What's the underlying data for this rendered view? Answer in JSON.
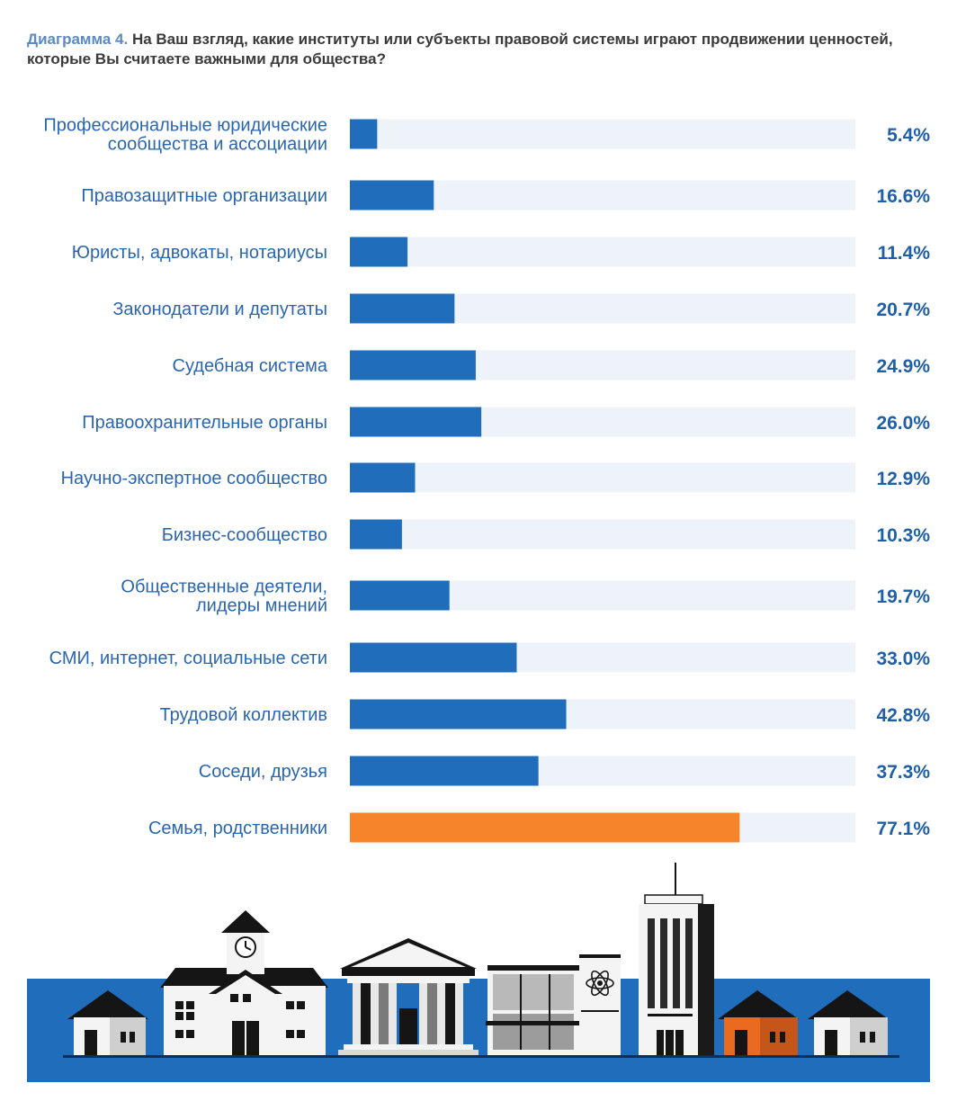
{
  "title": {
    "lead": "Диаграмма 4.",
    "text": "На Ваш взгляд, какие институты или субъекты правовой системы играют продвижении ценностей, которые Вы считаете важными для общества?"
  },
  "colors": {
    "bar": "#1f6dbb",
    "highlight": "#f5842a",
    "track": "#edf3f9",
    "label": "#2a66ad",
    "value": "#1f5fa8",
    "ground": "#1f6dbb"
  },
  "chart_data": {
    "type": "bar",
    "orientation": "horizontal",
    "xlim": [
      0,
      100
    ],
    "unit": "%",
    "grid": false,
    "legend": "none",
    "categories": [
      [
        "Профессиональные юридические",
        "сообщества и ассоциации"
      ],
      [
        "Правозащитные организации"
      ],
      [
        "Юристы, адвокаты, нотариусы"
      ],
      [
        "Законодатели и депутаты"
      ],
      [
        "Судебная система"
      ],
      [
        "Правоохранительные органы"
      ],
      [
        "Научно-экспертное сообщество"
      ],
      [
        "Бизнес-сообщество"
      ],
      [
        "Общественные деятели,",
        "лидеры мнений"
      ],
      [
        "СМИ, интернет, социальные сети"
      ],
      [
        "Трудовой коллектив"
      ],
      [
        "Соседи, друзья"
      ],
      [
        "Семья, родственники"
      ]
    ],
    "values": [
      5.4,
      16.6,
      11.4,
      20.7,
      24.9,
      26.0,
      12.9,
      10.3,
      19.7,
      33.0,
      42.8,
      37.3,
      77.1
    ],
    "value_labels": [
      "5.4%",
      "16.6%",
      "11.4%",
      "20.7%",
      "24.9%",
      "26.0%",
      "12.9%",
      "10.3%",
      "19.7%",
      "33.0%",
      "42.8%",
      "37.3%",
      "77.1%"
    ],
    "highlight_index": 12
  }
}
